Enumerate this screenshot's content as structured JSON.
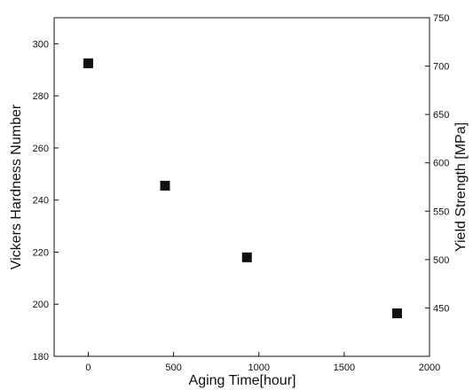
{
  "chart_data": {
    "type": "scatter",
    "title": "",
    "xlabel": "Aging Time[hour]",
    "ylabel": "Vickers Hardness Number",
    "y2label": "Yield Strength [MPa]",
    "xlim": [
      -200,
      2000
    ],
    "ylim": [
      180,
      310
    ],
    "y2lim": [
      400,
      750
    ],
    "xticks": [
      0,
      500,
      1000,
      1500,
      2000
    ],
    "yticks": [
      180,
      200,
      220,
      240,
      260,
      280,
      300
    ],
    "y2ticks": [
      450,
      500,
      550,
      600,
      650,
      700,
      750
    ],
    "grid": false,
    "legend": "none",
    "marker": "square",
    "colors": {
      "marker": "#111111",
      "axis": "#111111",
      "background": "#ffffff"
    },
    "series": [
      {
        "x": [
          0,
          450,
          930,
          1810
        ],
        "y": [
          292.5,
          245.5,
          218,
          196.5
        ]
      }
    ]
  }
}
